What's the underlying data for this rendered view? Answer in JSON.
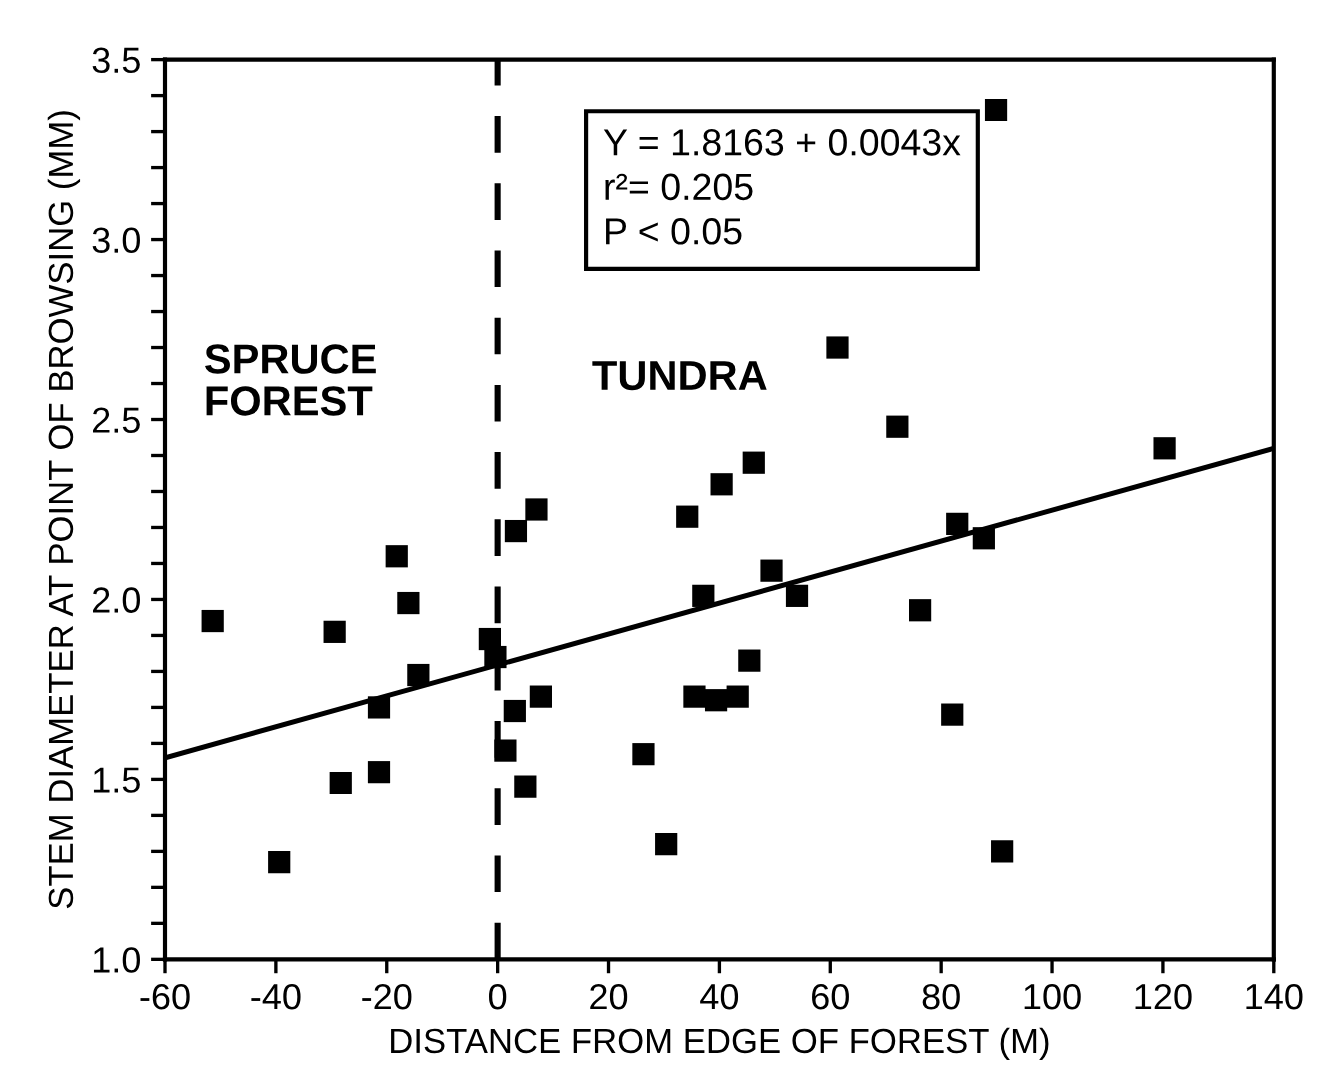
{
  "chart_data": {
    "type": "scatter",
    "xlabel": "DISTANCE FROM EDGE OF FOREST (M)",
    "ylabel": "STEM DIAMETER AT POINT OF BROWSING (MM)",
    "xlim": [
      -60,
      140
    ],
    "ylim": [
      1.0,
      3.5
    ],
    "xticks": [
      -60,
      -40,
      -20,
      0,
      20,
      40,
      60,
      80,
      100,
      120,
      140
    ],
    "yticks": [
      {
        "value": 1.0,
        "label": "1.0"
      },
      {
        "value": 1.1,
        "label": null
      },
      {
        "value": 1.2,
        "label": null
      },
      {
        "value": 1.3,
        "label": null
      },
      {
        "value": 1.4,
        "label": null
      },
      {
        "value": 1.5,
        "label": "1.5"
      },
      {
        "value": 1.6,
        "label": null
      },
      {
        "value": 1.7,
        "label": null
      },
      {
        "value": 1.8,
        "label": null
      },
      {
        "value": 1.9,
        "label": null
      },
      {
        "value": 2.0,
        "label": "2.0"
      },
      {
        "value": 2.1,
        "label": null
      },
      {
        "value": 2.2,
        "label": null
      },
      {
        "value": 2.3,
        "label": null
      },
      {
        "value": 2.4,
        "label": null
      },
      {
        "value": 2.5,
        "label": "2.5"
      },
      {
        "value": 2.6,
        "label": null
      },
      {
        "value": 2.7,
        "label": null
      },
      {
        "value": 2.8,
        "label": null
      },
      {
        "value": 2.9,
        "label": null
      },
      {
        "value": 3.0,
        "label": "3.0"
      },
      {
        "value": 3.1,
        "label": null
      },
      {
        "value": 3.2,
        "label": null
      },
      {
        "value": 3.3,
        "label": null
      },
      {
        "value": 3.4,
        "label": null
      },
      {
        "value": 3.5,
        "label": "3.5"
      }
    ],
    "grid": false,
    "marker": "square",
    "series": [
      {
        "color": "#000000",
        "x": [
          -51.4,
          -39.4,
          -29.4,
          -28.3,
          -18.2,
          -16.1,
          -14.3,
          -21.4,
          -21.4,
          -1.4,
          -0.4,
          3.3,
          7.0,
          3.1,
          7.8,
          1.4,
          5.0,
          26.3,
          30.4,
          34.2,
          40.4,
          37.1,
          35.5,
          39.4,
          43.3,
          61.3,
          72.1,
          46.2,
          49.4,
          54.0,
          82.9,
          87.7,
          76.2,
          120.3,
          45.4,
          82.0,
          91.0,
          89.9
        ],
        "values": [
          1.94,
          1.27,
          1.91,
          1.49,
          2.12,
          1.99,
          1.79,
          1.7,
          1.52,
          1.89,
          1.84,
          2.19,
          2.25,
          1.69,
          1.73,
          1.58,
          1.48,
          1.57,
          1.32,
          2.23,
          2.32,
          2.01,
          1.73,
          1.72,
          1.73,
          2.7,
          2.48,
          2.38,
          2.08,
          2.01,
          2.21,
          2.17,
          1.97,
          2.42,
          1.83,
          1.68,
          1.3,
          3.36
        ]
      },
      {
        "type": "line",
        "color": "#000000",
        "x": [
          -60,
          140
        ],
        "values": [
          1.56,
          2.42
        ],
        "line_style": "solid",
        "marker": "none"
      }
    ],
    "ref_lines": [
      {
        "axis": "x",
        "value": 0,
        "color": "#000000",
        "line_style": "dashed"
      }
    ],
    "annotations": [
      "SPRUCE\nFOREST",
      "TUNDRA",
      "Y = 1.8163 + 0.0043x\nr²= 0.205\nP < 0.05"
    ]
  }
}
